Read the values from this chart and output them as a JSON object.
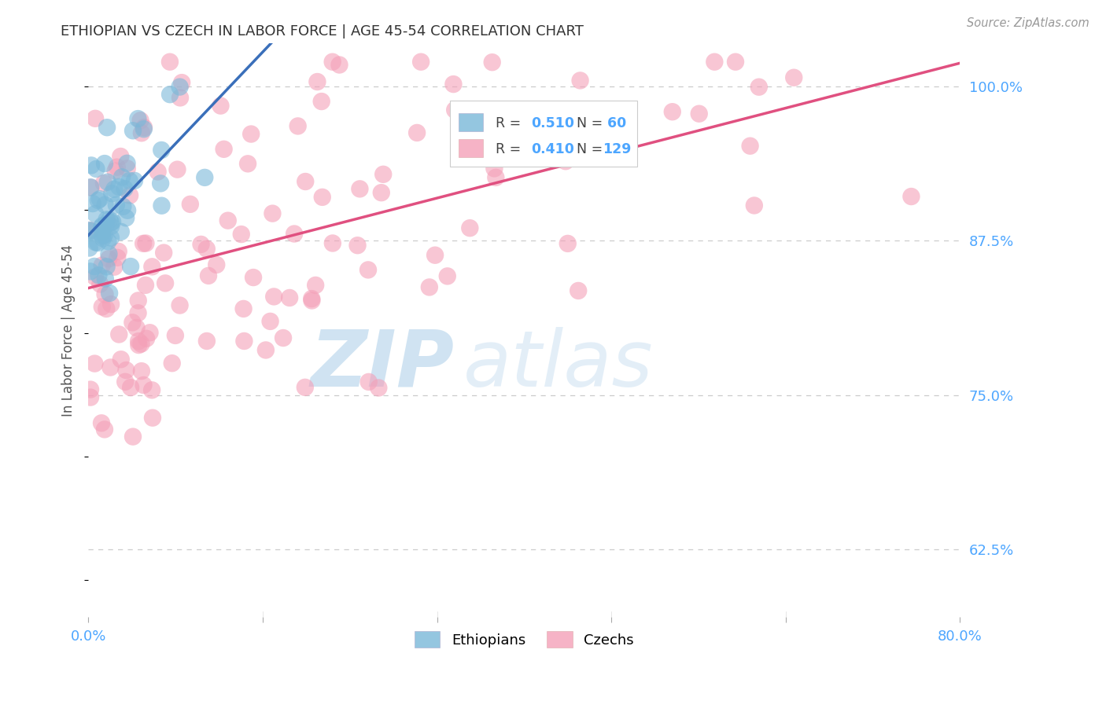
{
  "title": "ETHIOPIAN VS CZECH IN LABOR FORCE | AGE 45-54 CORRELATION CHART",
  "source": "Source: ZipAtlas.com",
  "ylabel": "In Labor Force | Age 45-54",
  "xlim": [
    0.0,
    80.0
  ],
  "ylim": [
    57.0,
    103.5
  ],
  "yticks": [
    62.5,
    75.0,
    87.5,
    100.0
  ],
  "ytick_labels": [
    "62.5%",
    "75.0%",
    "87.5%",
    "100.0%"
  ],
  "ethiopians_R": 0.51,
  "ethiopians_N": 60,
  "czechs_R": 0.41,
  "czechs_N": 129,
  "legend_label_blue": "Ethiopians",
  "legend_label_pink": "Czechs",
  "blue_color": "#7ab8d9",
  "pink_color": "#f4a0b8",
  "blue_line_color": "#3a6fba",
  "pink_line_color": "#e05080",
  "axis_label_color": "#4da6ff",
  "title_color": "#333333",
  "grid_color": "#cccccc",
  "watermark_zip": "ZIP",
  "watermark_atlas": "atlas",
  "eth_x_seed": 7,
  "czk_x_seed": 13
}
